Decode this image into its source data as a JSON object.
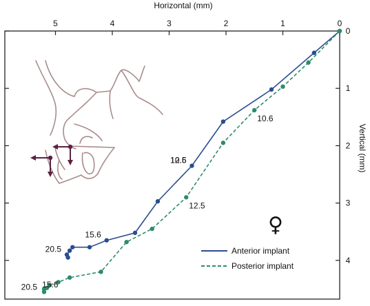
{
  "chart_data": {
    "type": "line",
    "xlabel": "Horizontal (mm)",
    "ylabel": "Vertical (mm)",
    "x_axis_position": "top",
    "y_axis_position": "right",
    "x_reversed": true,
    "y_reversed": true,
    "xlim": [
      0,
      5.9
    ],
    "ylim": [
      0,
      4.7
    ],
    "xticks": [
      0,
      1,
      2,
      3,
      4,
      5
    ],
    "yticks": [
      0,
      1,
      2,
      3,
      4
    ],
    "grid": false,
    "legend_position": "bottom-right",
    "symbol": "♀",
    "series": [
      {
        "name": "Anterior implant",
        "color": "#2b4d8f",
        "line_style": "solid",
        "x": [
          0,
          0.45,
          1.2,
          2.05,
          2.6,
          3.2,
          3.6,
          4.1,
          4.4,
          4.7,
          4.75,
          4.8,
          4.78
        ],
        "y": [
          0,
          0.38,
          1.02,
          1.58,
          2.35,
          2.97,
          3.52,
          3.65,
          3.77,
          3.77,
          3.83,
          3.9,
          3.95
        ],
        "labels": [
          {
            "text": "10.6",
            "index": 4,
            "at_index": 4
          },
          {
            "text": "12.5",
            "at_index": 4
          },
          {
            "text": "15.6",
            "at_index": 7
          },
          {
            "text": "20.5",
            "at_index": 11
          }
        ]
      },
      {
        "name": "Posterior implant",
        "color": "#2e8b66",
        "line_style": "dashed",
        "x": [
          0,
          0.55,
          1.0,
          1.5,
          2.05,
          2.7,
          3.3,
          3.75,
          4.2,
          4.75,
          4.95,
          5.1,
          5.15,
          5.2,
          5.2
        ],
        "y": [
          0,
          0.55,
          0.97,
          1.38,
          1.95,
          2.9,
          3.45,
          3.68,
          4.2,
          4.3,
          4.38,
          4.43,
          4.48,
          4.55,
          4.5
        ],
        "labels": [
          {
            "text": "10.6",
            "at_index": 3
          },
          {
            "text": "12.5",
            "at_index": 5
          },
          {
            "text": "15.6",
            "at_index": 9
          },
          {
            "text": "20.5",
            "at_index": 13
          }
        ]
      }
    ]
  }
}
